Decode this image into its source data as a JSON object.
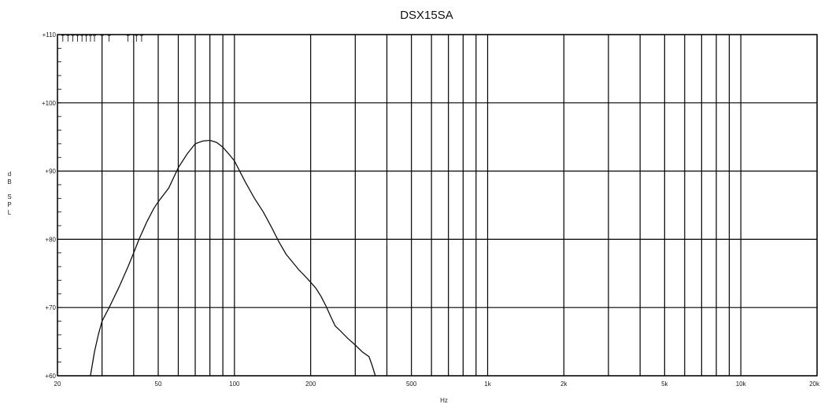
{
  "chart_data": {
    "type": "line",
    "title": "DSX15SA",
    "xlabel": "Hz",
    "ylabel": "dB SPL",
    "x_scale": "log",
    "xlim": [
      20,
      20000
    ],
    "ylim": [
      60,
      110
    ],
    "x_ticks": [
      {
        "value": 20,
        "label": "20"
      },
      {
        "value": 50,
        "label": "50"
      },
      {
        "value": 100,
        "label": "100"
      },
      {
        "value": 200,
        "label": "200"
      },
      {
        "value": 500,
        "label": "500"
      },
      {
        "value": 1000,
        "label": "1k"
      },
      {
        "value": 2000,
        "label": "2k"
      },
      {
        "value": 5000,
        "label": "5k"
      },
      {
        "value": 10000,
        "label": "10k"
      },
      {
        "value": 20000,
        "label": "20k"
      }
    ],
    "y_ticks": [
      {
        "value": 60,
        "label": "+60"
      },
      {
        "value": 70,
        "label": "+70"
      },
      {
        "value": 80,
        "label": "+80"
      },
      {
        "value": 90,
        "label": "+90"
      },
      {
        "value": 100,
        "label": "+100"
      },
      {
        "value": 110,
        "label": "+110"
      }
    ],
    "grid_x": [
      20,
      30,
      40,
      50,
      60,
      70,
      80,
      90,
      100,
      200,
      300,
      400,
      500,
      600,
      700,
      800,
      900,
      1000,
      2000,
      3000,
      4000,
      5000,
      6000,
      7000,
      8000,
      9000,
      10000,
      20000
    ],
    "grid_y": [
      60,
      70,
      80,
      90,
      100,
      110
    ],
    "grid": true,
    "series": [
      {
        "x": [
          27,
          28,
          29,
          30,
          32,
          35,
          38,
          40,
          42,
          45,
          48,
          50,
          55,
          60,
          65,
          70,
          75,
          80,
          85,
          90,
          95,
          100,
          110,
          120,
          130,
          140,
          150,
          160,
          170,
          180,
          190,
          200,
          210,
          220,
          230,
          240,
          250,
          260,
          280,
          300,
          320,
          340,
          350,
          360
        ],
        "y": [
          60,
          63.5,
          66,
          68,
          70,
          73,
          76,
          78,
          80,
          82.5,
          84.5,
          85.5,
          87.5,
          90.5,
          92.5,
          94,
          94.4,
          94.5,
          94.2,
          93.5,
          92.5,
          91.5,
          88.5,
          86,
          84,
          81.8,
          79.6,
          77.8,
          76.6,
          75.5,
          74.6,
          73.7,
          72.8,
          71.6,
          70.2,
          68.7,
          67.3,
          66.7,
          65.5,
          64.5,
          63.5,
          62.8,
          61.5,
          60
        ]
      }
    ]
  }
}
